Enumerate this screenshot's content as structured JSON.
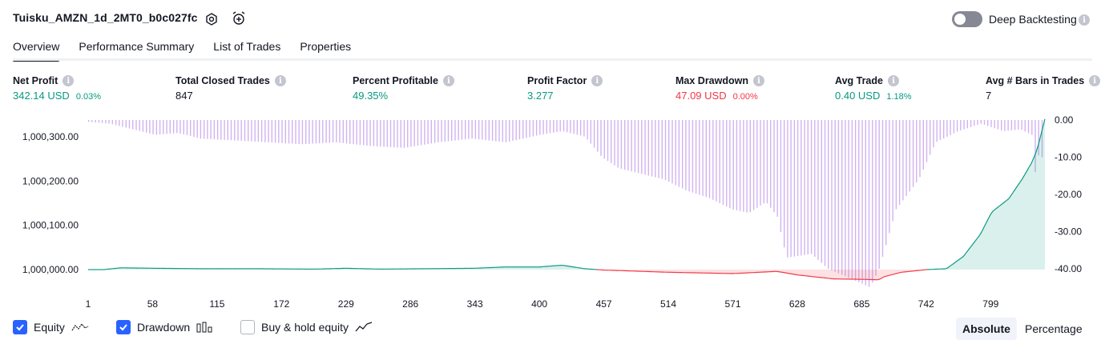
{
  "header": {
    "strategy_name": "Tuisku_AMZN_1d_2MT0_b0c027fc",
    "settings_icon": "settings-icon",
    "alert_icon": "alarm-clock-plus-icon",
    "deep_backtesting_label": "Deep Backtesting",
    "deep_backtesting_enabled": false
  },
  "tabs": [
    {
      "label": "Overview",
      "active": true
    },
    {
      "label": "Performance Summary",
      "active": false
    },
    {
      "label": "List of Trades",
      "active": false
    },
    {
      "label": "Properties",
      "active": false
    }
  ],
  "metrics": {
    "net_profit": {
      "label": "Net Profit",
      "value": "342.14 USD",
      "pct": "0.03%"
    },
    "total_closed_trades": {
      "label": "Total Closed Trades",
      "value": "847"
    },
    "percent_profitable": {
      "label": "Percent Profitable",
      "value": "49.35%"
    },
    "profit_factor": {
      "label": "Profit Factor",
      "value": "3.277"
    },
    "max_drawdown": {
      "label": "Max Drawdown",
      "value": "47.09 USD",
      "pct": "0.00%"
    },
    "avg_trade": {
      "label": "Avg Trade",
      "value": "0.40 USD",
      "pct": "1.18%"
    },
    "avg_bars": {
      "label": "Avg # Bars in Trades",
      "value": "7"
    }
  },
  "chart_data": {
    "type": "area",
    "left_axis": {
      "ticks": [
        "1,000,300.00",
        "1,000,200.00",
        "1,000,100.00",
        "1,000,000.00"
      ],
      "values": [
        1000300,
        1000200,
        1000100,
        1000000
      ]
    },
    "right_axis": {
      "ticks": [
        "0.00",
        "-10.00",
        "-20.00",
        "-30.00",
        "-40.00"
      ],
      "values": [
        0,
        -10,
        -20,
        -30,
        -40
      ]
    },
    "x_ticks": [
      "1",
      "58",
      "115",
      "172",
      "229",
      "286",
      "343",
      "400",
      "457",
      "514",
      "571",
      "628",
      "685",
      "742",
      "799"
    ],
    "x_range": [
      1,
      847
    ],
    "series": [
      {
        "name": "Equity",
        "color_up": "#089981",
        "color_down": "#f23645",
        "points": [
          [
            1,
            1000000
          ],
          [
            15,
            1000000
          ],
          [
            30,
            1000004
          ],
          [
            60,
            1000003
          ],
          [
            100,
            1000002
          ],
          [
            150,
            1000002
          ],
          [
            200,
            1000001
          ],
          [
            229,
            1000003
          ],
          [
            260,
            1000001
          ],
          [
            300,
            1000002
          ],
          [
            343,
            1000003
          ],
          [
            370,
            1000006
          ],
          [
            400,
            1000006
          ],
          [
            420,
            1000010
          ],
          [
            440,
            1000002
          ],
          [
            457,
            999999
          ],
          [
            514,
            999994
          ],
          [
            571,
            999991
          ],
          [
            610,
            999996
          ],
          [
            628,
            999988
          ],
          [
            660,
            999979
          ],
          [
            685,
            999978
          ],
          [
            700,
            999977
          ],
          [
            705,
            999984
          ],
          [
            720,
            999994
          ],
          [
            742,
            1000000
          ],
          [
            760,
            1000002
          ],
          [
            775,
            1000030
          ],
          [
            790,
            1000080
          ],
          [
            800,
            1000130
          ],
          [
            815,
            1000160
          ],
          [
            827,
            1000205
          ],
          [
            835,
            1000240
          ],
          [
            840,
            1000270
          ],
          [
            844,
            1000310
          ],
          [
            847,
            1000340
          ]
        ]
      },
      {
        "name": "Drawdown",
        "color": "#d1b3f0",
        "points": [
          [
            1,
            -0.5
          ],
          [
            20,
            -1
          ],
          [
            40,
            -2.5
          ],
          [
            60,
            -4
          ],
          [
            80,
            -3.5
          ],
          [
            100,
            -5
          ],
          [
            130,
            -5.5
          ],
          [
            160,
            -6
          ],
          [
            190,
            -6.5
          ],
          [
            220,
            -6
          ],
          [
            250,
            -7
          ],
          [
            280,
            -7.5
          ],
          [
            310,
            -6
          ],
          [
            340,
            -5
          ],
          [
            370,
            -6
          ],
          [
            400,
            -4
          ],
          [
            420,
            -3
          ],
          [
            440,
            -4.5
          ],
          [
            455,
            -10
          ],
          [
            470,
            -13
          ],
          [
            490,
            -14.5
          ],
          [
            510,
            -16
          ],
          [
            530,
            -19
          ],
          [
            550,
            -21
          ],
          [
            570,
            -24
          ],
          [
            585,
            -25
          ],
          [
            600,
            -22
          ],
          [
            610,
            -26
          ],
          [
            618,
            -37
          ],
          [
            640,
            -36
          ],
          [
            655,
            -40
          ],
          [
            670,
            -42
          ],
          [
            685,
            -44
          ],
          [
            692,
            -45
          ],
          [
            700,
            -40
          ],
          [
            715,
            -24
          ],
          [
            725,
            -20
          ],
          [
            735,
            -16
          ],
          [
            750,
            -6
          ],
          [
            770,
            -3
          ],
          [
            790,
            -1
          ],
          [
            810,
            -3
          ],
          [
            825,
            -2.5
          ],
          [
            835,
            -4
          ],
          [
            838,
            -14
          ],
          [
            842,
            -8
          ],
          [
            845,
            -11
          ],
          [
            847,
            0
          ]
        ]
      },
      {
        "name": "Buy & hold equity",
        "enabled": false
      }
    ]
  },
  "legend": [
    {
      "label": "Equity",
      "checked": true,
      "icon": "equity-line-icon"
    },
    {
      "label": "Drawdown",
      "checked": true,
      "icon": "drawdown-bars-icon"
    },
    {
      "label": "Buy & hold equity",
      "checked": false,
      "icon": "buy-hold-line-icon"
    }
  ],
  "scale_modes": [
    {
      "label": "Absolute",
      "active": true
    },
    {
      "label": "Percentage",
      "active": false
    }
  ]
}
